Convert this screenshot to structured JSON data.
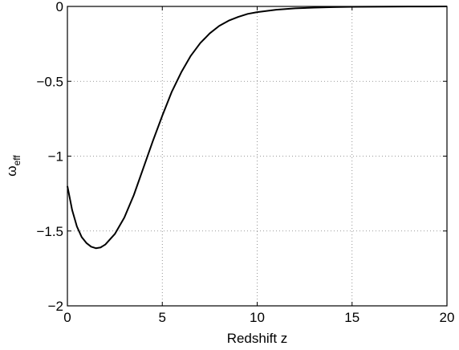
{
  "chart_data": {
    "type": "line",
    "title": "",
    "xlabel": "Redshift z",
    "ylabel_main": "ω",
    "ylabel_sub": "eff",
    "xlim": [
      0,
      20
    ],
    "ylim": [
      -2,
      0
    ],
    "xticks": [
      0,
      5,
      10,
      15,
      20
    ],
    "xtick_labels": [
      "0",
      "5",
      "10",
      "15",
      "20"
    ],
    "yticks": [
      -2,
      -1.5,
      -1,
      -0.5,
      0
    ],
    "ytick_labels": [
      "−2",
      "−1.5",
      "−1",
      "−0.5",
      "0"
    ],
    "grid": true,
    "series": [
      {
        "color": "#000000",
        "x": [
          0,
          0.25,
          0.5,
          0.75,
          1.0,
          1.25,
          1.5,
          1.75,
          2.0,
          2.5,
          3.0,
          3.5,
          4.0,
          4.5,
          5.0,
          5.5,
          6.0,
          6.5,
          7.0,
          7.5,
          8.0,
          8.5,
          9.0,
          9.5,
          10.0,
          11.0,
          12.0,
          13.0,
          14.0,
          15.0,
          16.0,
          17.0,
          18.0,
          19.0,
          20.0
        ],
        "y": [
          -1.2,
          -1.36,
          -1.47,
          -1.54,
          -1.58,
          -1.605,
          -1.615,
          -1.61,
          -1.59,
          -1.52,
          -1.41,
          -1.26,
          -1.08,
          -0.9,
          -0.73,
          -0.57,
          -0.44,
          -0.33,
          -0.245,
          -0.18,
          -0.13,
          -0.095,
          -0.07,
          -0.05,
          -0.038,
          -0.022,
          -0.013,
          -0.008,
          -0.005,
          -0.003,
          -0.002,
          -0.001,
          -0.0007,
          -0.0004,
          -0.0002
        ]
      }
    ]
  }
}
